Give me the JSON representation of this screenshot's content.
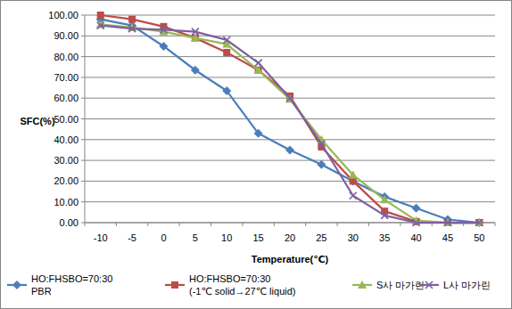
{
  "chart_data": {
    "type": "line",
    "x_label": "Temperature(℃)",
    "y_label": "SFC(%)",
    "categories": [
      "-10",
      "-5",
      "0",
      "5",
      "10",
      "15",
      "20",
      "25",
      "30",
      "35",
      "40",
      "45",
      "50"
    ],
    "series": [
      {
        "name": "HO:FHSBO=70:30\nPBR",
        "color": "#4a7ebb",
        "marker": "diamond",
        "values": [
          98,
          95,
          85,
          73.5,
          63.5,
          43,
          35,
          28,
          20,
          12.5,
          7,
          1.5,
          0
        ]
      },
      {
        "name": "HO:FHSBO=70:30\n(-1℃ solid→27℃ liquid)",
        "color": "#be4b48",
        "marker": "square",
        "values": [
          100,
          98,
          94.5,
          89,
          82,
          73.5,
          61,
          36.5,
          20,
          5.5,
          0.5,
          0,
          0
        ]
      },
      {
        "name": "S사 마가린",
        "color": "#98b954",
        "marker": "triangle",
        "values": [
          95.5,
          94,
          92,
          89,
          86,
          73.5,
          59.5,
          40,
          23,
          11,
          1,
          0,
          0
        ]
      },
      {
        "name": "L사 마가린",
        "color": "#7d60a0",
        "marker": "x",
        "values": [
          95,
          93.5,
          93,
          92,
          88,
          77,
          60,
          38,
          13,
          3.5,
          0,
          0,
          0
        ]
      }
    ],
    "ylim": [
      0,
      100
    ],
    "yticks": [
      {
        "value": 0,
        "label": "0.00"
      },
      {
        "value": 10,
        "label": "10.00"
      },
      {
        "value": 20,
        "label": "20.00"
      },
      {
        "value": 30,
        "label": "30.00"
      },
      {
        "value": 40,
        "label": "40.00"
      },
      {
        "value": 50,
        "label": "50.00"
      },
      {
        "value": 60,
        "label": "60.00"
      },
      {
        "value": 70,
        "label": "70.00"
      },
      {
        "value": 80,
        "label": "80.00"
      },
      {
        "value": 90,
        "label": "90.00"
      },
      {
        "value": 100,
        "label": "100.00"
      }
    ],
    "grid": true,
    "legend": "bottom"
  }
}
